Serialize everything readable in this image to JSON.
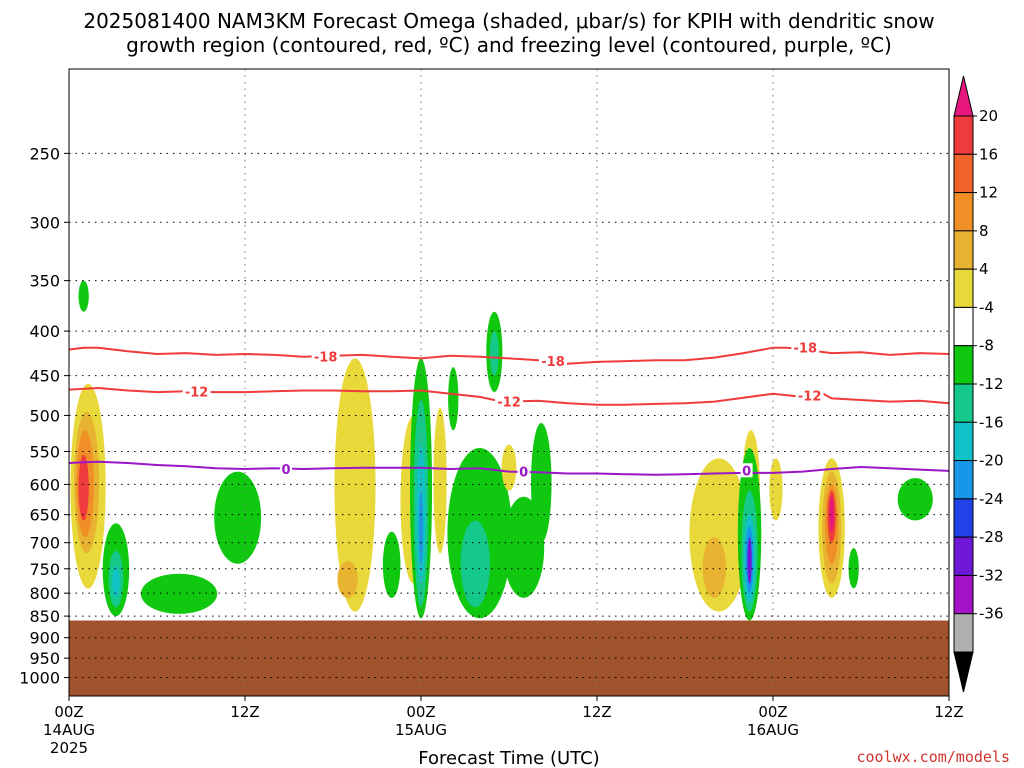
{
  "title": {
    "line1": "2025081400 NAM3KM Forecast Omega (shaded, μbar/s) for KPIH with dendritic snow",
    "line2": "growth region (contoured, red, ºC) and freezing level (contoured, purple, ºC)"
  },
  "xlabel": "Forecast Time (UTC)",
  "credit": "coolwx.com/models",
  "chart_data": {
    "type": "time-pressure cross section",
    "x_unit": "hours since 2025-08-14 00Z",
    "x_range": [
      0,
      60
    ],
    "x_ticks": [
      {
        "x": 0,
        "label": "00Z",
        "sub1": "14AUG",
        "sub2": "2025"
      },
      {
        "x": 12,
        "label": "12Z",
        "sub1": "",
        "sub2": ""
      },
      {
        "x": 24,
        "label": "00Z",
        "sub1": "15AUG",
        "sub2": ""
      },
      {
        "x": 36,
        "label": "12Z",
        "sub1": "",
        "sub2": ""
      },
      {
        "x": 48,
        "label": "00Z",
        "sub1": "16AUG",
        "sub2": ""
      },
      {
        "x": 60,
        "label": "12Z",
        "sub1": "",
        "sub2": ""
      }
    ],
    "y_unit": "hPa",
    "y_scale": "log",
    "y_range": [
      1050,
      200
    ],
    "y_ticks": [
      250,
      300,
      350,
      400,
      450,
      500,
      550,
      600,
      650,
      700,
      750,
      800,
      850,
      900,
      950,
      1000
    ],
    "y_tick_labels": [
      "250",
      "300",
      "350",
      "400",
      "450",
      "500",
      "550",
      "600",
      "650",
      "700",
      "750",
      "800",
      "850",
      "900",
      "950",
      "1000"
    ],
    "grid": true,
    "ground_pressure": 860,
    "ground_color": "#a0522d",
    "colorbar": {
      "labels": [
        "20",
        "16",
        "12",
        "8",
        "4",
        "-4",
        "-8",
        "-12",
        "-16",
        "-20",
        "-24",
        "-28",
        "-32",
        "-36"
      ],
      "colors": [
        "#e8177f",
        "#ef3b3b",
        "#f0642b",
        "#ef8f26",
        "#e9b332",
        "#e8d83a",
        "#ffffff",
        "#10c810",
        "#15c98a",
        "#11c2c8",
        "#1896e8",
        "#2241e6",
        "#6f18d8",
        "#a312c6",
        "#b0b0b0",
        "#000000"
      ]
    },
    "contours": [
      {
        "name": "-18",
        "color": "#ef3b3b",
        "x": [
          0,
          1,
          2,
          4,
          6,
          8,
          10,
          12,
          14,
          16,
          18,
          20,
          22,
          24,
          26,
          28,
          30,
          32,
          34,
          36,
          38,
          40,
          42,
          44,
          46,
          48,
          49,
          50,
          52,
          54,
          56,
          58,
          60
        ],
        "y": [
          420,
          418,
          418,
          422,
          425,
          424,
          426,
          425,
          426,
          428,
          427,
          426,
          428,
          430,
          427,
          428,
          430,
          432,
          436,
          434,
          433,
          432,
          432,
          429,
          424,
          418,
          418,
          420,
          424,
          423,
          426,
          424,
          425
        ]
      },
      {
        "name": "-12",
        "color": "#ef3b3b",
        "x": [
          0,
          2,
          4,
          6,
          8,
          10,
          12,
          14,
          16,
          18,
          20,
          22,
          24,
          26,
          28,
          29,
          30,
          32,
          34,
          36,
          38,
          40,
          42,
          44,
          46,
          48,
          50,
          51,
          52,
          54,
          56,
          58,
          60
        ],
        "y": [
          467,
          465,
          468,
          470,
          469,
          470,
          470,
          469,
          468,
          468,
          469,
          469,
          468,
          472,
          476,
          480,
          482,
          481,
          484,
          486,
          486,
          485,
          484,
          482,
          477,
          472,
          476,
          468,
          478,
          480,
          482,
          481,
          484
        ]
      },
      {
        "name": "0",
        "color": "#9a16c8",
        "x": [
          0,
          1,
          2,
          4,
          6,
          8,
          10,
          12,
          14,
          16,
          18,
          20,
          22,
          24,
          26,
          28,
          30,
          32,
          34,
          36,
          38,
          40,
          42,
          44,
          46,
          48,
          50,
          52,
          54,
          56,
          58,
          60
        ],
        "y": [
          567,
          566,
          565,
          567,
          570,
          572,
          575,
          576,
          575,
          576,
          575,
          574,
          574,
          574,
          576,
          575,
          580,
          581,
          583,
          583,
          584,
          585,
          584,
          583,
          582,
          582,
          580,
          576,
          573,
          575,
          577,
          579
        ]
      }
    ],
    "contour_labels": [
      {
        "text": "-18",
        "x": 17.5,
        "y": 428
      },
      {
        "text": "-18",
        "x": 33,
        "y": 433
      },
      {
        "text": "-18",
        "x": 50.2,
        "y": 418
      },
      {
        "text": "-12",
        "x": 8.7,
        "y": 469
      },
      {
        "text": "-12",
        "x": 30,
        "y": 482
      },
      {
        "text": "-12",
        "x": 50.5,
        "y": 474
      },
      {
        "text": "0",
        "x": 14.8,
        "y": 576
      },
      {
        "text": "0",
        "x": 31,
        "y": 580
      },
      {
        "text": "0",
        "x": 46.2,
        "y": 578
      }
    ],
    "shaded_regions": [
      {
        "value": "4 to 8",
        "color": "#e8d83a",
        "cx": 1.3,
        "p_top": 460,
        "p_bot": 790,
        "hw": 1.2
      },
      {
        "value": "8 to 12",
        "color": "#e9b332",
        "cx": 1.2,
        "p_top": 495,
        "p_bot": 720,
        "hw": 0.85
      },
      {
        "value": "12 to 16",
        "color": "#ef8f26",
        "cx": 1.1,
        "p_top": 520,
        "p_bot": 690,
        "hw": 0.6
      },
      {
        "value": "16 to 20",
        "color": "#ef3b3b",
        "cx": 1.0,
        "p_top": 555,
        "p_bot": 660,
        "hw": 0.35
      },
      {
        "value": "-4 to -8",
        "color": "#10c810",
        "cx": 1.0,
        "p_top": 350,
        "p_bot": 380,
        "hw": 0.35
      },
      {
        "value": "-4 to -8",
        "color": "#10c810",
        "cx": 3.2,
        "p_top": 665,
        "p_bot": 850,
        "hw": 0.9
      },
      {
        "value": "-8 to -12",
        "color": "#15c98a",
        "cx": 3.2,
        "p_top": 715,
        "p_bot": 830,
        "hw": 0.5
      },
      {
        "value": "-12 to -16",
        "color": "#11c2c8",
        "cx": 3.2,
        "p_top": 745,
        "p_bot": 810,
        "hw": 0.25
      },
      {
        "value": "-4 to -8",
        "color": "#10c810",
        "cx": 7.5,
        "p_top": 760,
        "p_bot": 845,
        "hw": 2.6
      },
      {
        "value": "-4 to -8",
        "color": "#10c810",
        "cx": 11.5,
        "p_top": 580,
        "p_bot": 740,
        "hw": 1.6
      },
      {
        "value": "4 to 8",
        "color": "#e8d83a",
        "cx": 19.5,
        "p_top": 430,
        "p_bot": 840,
        "hw": 1.4
      },
      {
        "value": "8 to 12",
        "color": "#e9b332",
        "cx": 19.0,
        "p_top": 735,
        "p_bot": 810,
        "hw": 0.7
      },
      {
        "value": "-4 to -8",
        "color": "#10c810",
        "cx": 22.0,
        "p_top": 680,
        "p_bot": 810,
        "hw": 0.6
      },
      {
        "value": "4 to 8",
        "color": "#e8d83a",
        "cx": 23.5,
        "p_top": 500,
        "p_bot": 780,
        "hw": 0.9
      },
      {
        "value": "-4 to -8",
        "color": "#10c810",
        "cx": 24.0,
        "p_top": 430,
        "p_bot": 855,
        "hw": 0.75
      },
      {
        "value": "-8 to -12",
        "color": "#15c98a",
        "cx": 24.0,
        "p_top": 480,
        "p_bot": 830,
        "hw": 0.5
      },
      {
        "value": "-12 to -16",
        "color": "#11c2c8",
        "cx": 24.0,
        "p_top": 540,
        "p_bot": 780,
        "hw": 0.3
      },
      {
        "value": "-16 to -20",
        "color": "#1896e8",
        "cx": 24.0,
        "p_top": 610,
        "p_bot": 740,
        "hw": 0.15
      },
      {
        "value": "4 to 8",
        "color": "#e8d83a",
        "cx": 25.3,
        "p_top": 490,
        "p_bot": 720,
        "hw": 0.45
      },
      {
        "value": "-4 to -8",
        "color": "#10c810",
        "cx": 26.2,
        "p_top": 440,
        "p_bot": 520,
        "hw": 0.35
      },
      {
        "value": "-4 to -8",
        "color": "#10c810",
        "cx": 29.0,
        "p_top": 380,
        "p_bot": 470,
        "hw": 0.55
      },
      {
        "value": "-8 to -12",
        "color": "#15c98a",
        "cx": 29.0,
        "p_top": 400,
        "p_bot": 450,
        "hw": 0.3
      },
      {
        "value": "-4 to -8",
        "color": "#10c810",
        "cx": 28.0,
        "p_top": 545,
        "p_bot": 855,
        "hw": 2.2
      },
      {
        "value": "-8 to -12",
        "color": "#15c98a",
        "cx": 27.7,
        "p_top": 660,
        "p_bot": 830,
        "hw": 1.0
      },
      {
        "value": "4 to 8",
        "color": "#e8d83a",
        "cx": 30.0,
        "p_top": 540,
        "p_bot": 610,
        "hw": 0.5
      },
      {
        "value": "-4 to -8",
        "color": "#10c810",
        "cx": 31.0,
        "p_top": 620,
        "p_bot": 810,
        "hw": 1.4
      },
      {
        "value": "-4 to -8",
        "color": "#10c810",
        "cx": 32.2,
        "p_top": 510,
        "p_bot": 700,
        "hw": 0.7
      },
      {
        "value": "4 to 8",
        "color": "#e8d83a",
        "cx": 44.3,
        "p_top": 560,
        "p_bot": 840,
        "hw": 2.0
      },
      {
        "value": "8 to 12",
        "color": "#e9b332",
        "cx": 44.0,
        "p_top": 690,
        "p_bot": 810,
        "hw": 0.8
      },
      {
        "value": "4 to 8",
        "color": "#e8d83a",
        "cx": 46.5,
        "p_top": 520,
        "p_bot": 700,
        "hw": 0.6
      },
      {
        "value": "-4 to -8",
        "color": "#10c810",
        "cx": 46.4,
        "p_top": 545,
        "p_bot": 860,
        "hw": 0.8
      },
      {
        "value": "-8 to -12",
        "color": "#15c98a",
        "cx": 46.4,
        "p_top": 610,
        "p_bot": 840,
        "hw": 0.55
      },
      {
        "value": "-12 to -16",
        "color": "#11c2c8",
        "cx": 46.4,
        "p_top": 650,
        "p_bot": 820,
        "hw": 0.38
      },
      {
        "value": "-16 to -20",
        "color": "#1896e8",
        "cx": 46.4,
        "p_top": 670,
        "p_bot": 800,
        "hw": 0.26
      },
      {
        "value": "-20 to -24",
        "color": "#6f18d8",
        "cx": 46.4,
        "p_top": 690,
        "p_bot": 780,
        "hw": 0.15
      },
      {
        "value": "4 to 8",
        "color": "#e8d83a",
        "cx": 48.2,
        "p_top": 560,
        "p_bot": 660,
        "hw": 0.45
      },
      {
        "value": "4 to 8",
        "color": "#e8d83a",
        "cx": 52.0,
        "p_top": 560,
        "p_bot": 810,
        "hw": 0.9
      },
      {
        "value": "8 to 12",
        "color": "#e9b332",
        "cx": 52.0,
        "p_top": 580,
        "p_bot": 780,
        "hw": 0.65
      },
      {
        "value": "12 to 16",
        "color": "#ef8f26",
        "cx": 52.0,
        "p_top": 600,
        "p_bot": 740,
        "hw": 0.45
      },
      {
        "value": "16 to 20",
        "color": "#ef3b3b",
        "cx": 52.0,
        "p_top": 610,
        "p_bot": 700,
        "hw": 0.28
      },
      {
        "value": ">20",
        "color": "#e8177f",
        "cx": 52.0,
        "p_top": 620,
        "p_bot": 680,
        "hw": 0.15
      },
      {
        "value": "-4 to -8",
        "color": "#10c810",
        "cx": 53.5,
        "p_top": 710,
        "p_bot": 790,
        "hw": 0.35
      },
      {
        "value": "-4 to -8",
        "color": "#10c810",
        "cx": 57.7,
        "p_top": 590,
        "p_bot": 660,
        "hw": 1.2
      }
    ]
  }
}
